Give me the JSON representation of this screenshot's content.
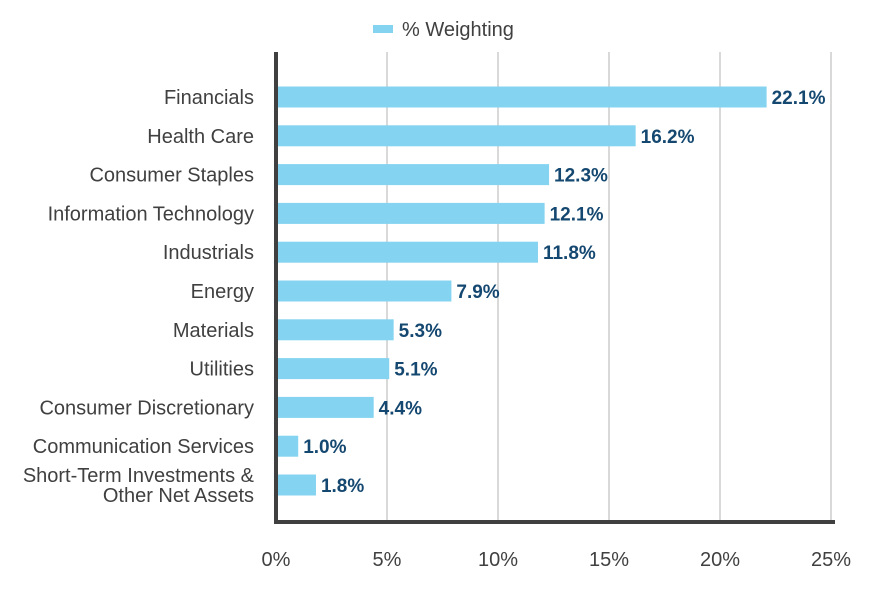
{
  "chart_data": {
    "type": "bar",
    "orientation": "horizontal",
    "categories": [
      [
        "Financials"
      ],
      [
        "Health Care"
      ],
      [
        "Consumer Staples"
      ],
      [
        "Information Technology"
      ],
      [
        "Industrials"
      ],
      [
        "Energy"
      ],
      [
        "Materials"
      ],
      [
        "Utilities"
      ],
      [
        "Consumer Discretionary"
      ],
      [
        "Communication Services"
      ],
      [
        "Short-Term Investments &",
        "Other Net Assets"
      ]
    ],
    "series": [
      {
        "name": "% Weighting",
        "values": [
          22.1,
          16.2,
          12.3,
          12.1,
          11.8,
          7.9,
          5.3,
          5.1,
          4.4,
          1.0,
          1.8
        ],
        "data_labels": [
          "22.1%",
          "16.2%",
          "12.3%",
          "12.1%",
          "11.8%",
          "7.9%",
          "5.3%",
          "5.1%",
          "4.4%",
          "1.0%",
          "1.8%"
        ]
      }
    ],
    "xlim": [
      0,
      25
    ],
    "x_ticks": [
      0,
      5,
      10,
      15,
      20,
      25
    ],
    "x_tick_labels": [
      "0%",
      "5%",
      "10%",
      "15%",
      "20%",
      "25%"
    ],
    "title": "",
    "xlabel": "",
    "ylabel": "",
    "grid": "vertical",
    "legend": "top-center",
    "colors": {
      "bar": "#84d3f0",
      "data_label": "#154870",
      "axis": "#404040",
      "grid": "#d9d9d9",
      "text": "#404040"
    }
  }
}
